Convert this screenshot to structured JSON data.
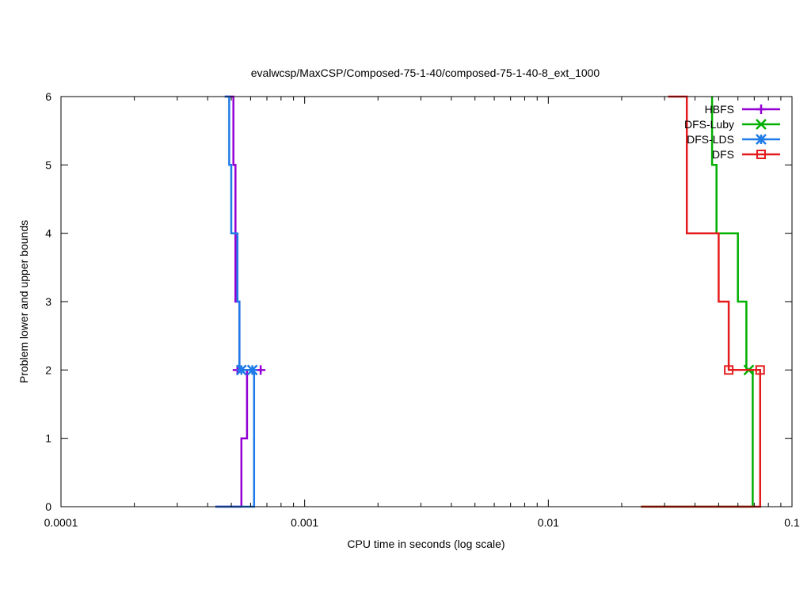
{
  "chart_data": {
    "type": "line",
    "title": "evalwcsp/MaxCSP/Composed-75-1-40/composed-75-1-40-8_ext_1000",
    "xlabel": "CPU time in seconds (log scale)",
    "ylabel": "Problem lower and upper bounds",
    "xscale": "log",
    "xlim": [
      0.0001,
      0.1
    ],
    "ylim": [
      0,
      6
    ],
    "x_ticks": [
      0.0001,
      0.001,
      0.01,
      0.1
    ],
    "x_tick_labels": [
      "0.0001",
      "0.001",
      "0.01",
      "0.1"
    ],
    "y_ticks": [
      0,
      1,
      2,
      3,
      4,
      5,
      6
    ],
    "y_tick_labels": [
      "0",
      "1",
      "2",
      "3",
      "4",
      "5",
      "6"
    ],
    "grid": false,
    "legend_position": "top-right",
    "series": [
      {
        "name": "HBFS",
        "color": "#9400d3",
        "marker": "plus",
        "lower": [
          [
            0.00043,
            0
          ],
          [
            0.00055,
            0
          ],
          [
            0.00055,
            1
          ],
          [
            0.00058,
            1
          ],
          [
            0.00058,
            2
          ],
          [
            0.00061,
            2
          ]
        ],
        "upper": [
          [
            0.00047,
            6
          ],
          [
            0.00051,
            6
          ],
          [
            0.00051,
            5
          ],
          [
            0.00052,
            5
          ],
          [
            0.00052,
            3
          ],
          [
            0.00054,
            3
          ],
          [
            0.00054,
            2
          ],
          [
            0.00061,
            2
          ]
        ],
        "markers": [
          [
            0.00053,
            2
          ],
          [
            0.00066,
            2
          ]
        ]
      },
      {
        "name": "DFS-Luby",
        "color": "#00b000",
        "marker": "cross",
        "lower": [
          [
            0.024,
            0
          ],
          [
            0.069,
            0
          ],
          [
            0.069,
            2
          ],
          [
            0.0665,
            2
          ]
        ],
        "upper": [
          [
            0.047,
            6
          ],
          [
            0.047,
            5
          ],
          [
            0.049,
            5
          ],
          [
            0.049,
            4
          ],
          [
            0.06,
            4
          ],
          [
            0.06,
            3
          ],
          [
            0.065,
            3
          ],
          [
            0.065,
            2
          ],
          [
            0.0665,
            2
          ]
        ],
        "markers": [
          [
            0.0665,
            2
          ]
        ]
      },
      {
        "name": "DFS-LDS",
        "color": "#1e7be8",
        "marker": "star",
        "lower": [
          [
            0.00043,
            0
          ],
          [
            0.00062,
            0
          ],
          [
            0.00062,
            2
          ],
          [
            0.00061,
            2
          ]
        ],
        "upper": [
          [
            0.00047,
            6
          ],
          [
            0.00049,
            6
          ],
          [
            0.00049,
            5
          ],
          [
            0.0005,
            5
          ],
          [
            0.0005,
            4
          ],
          [
            0.00053,
            4
          ],
          [
            0.00053,
            3
          ],
          [
            0.00054,
            3
          ],
          [
            0.00054,
            2
          ],
          [
            0.00061,
            2
          ]
        ],
        "markers": [
          [
            0.00055,
            2
          ],
          [
            0.00061,
            2
          ]
        ]
      },
      {
        "name": "DFS",
        "color": "#e41a1c",
        "marker": "square",
        "lower": [
          [
            0.024,
            0
          ],
          [
            0.074,
            0
          ],
          [
            0.074,
            2
          ],
          [
            0.07,
            2
          ]
        ],
        "upper": [
          [
            0.031,
            6
          ],
          [
            0.037,
            6
          ],
          [
            0.037,
            4
          ],
          [
            0.05,
            4
          ],
          [
            0.05,
            3
          ],
          [
            0.055,
            3
          ],
          [
            0.055,
            2
          ],
          [
            0.07,
            2
          ]
        ],
        "markers": [
          [
            0.055,
            2
          ],
          [
            0.074,
            2
          ]
        ]
      }
    ]
  }
}
